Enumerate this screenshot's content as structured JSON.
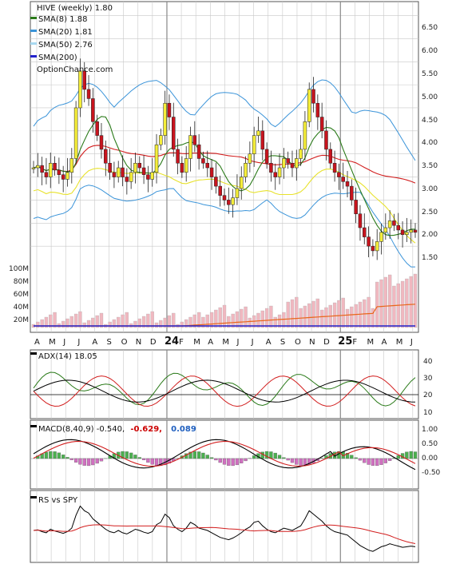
{
  "colors": {
    "background": "#ffffff",
    "grid": "#c8c8c8",
    "up_candle": "#f5ee3a",
    "down_candle": "#c8141e",
    "neutral_candle": "#b464b4",
    "sma8": "#2a7a19",
    "sma20": "#3b94d9",
    "sma50": "#e8e22c",
    "sma200": "#2222cc",
    "bollinger": "#3b94d9",
    "ma_red": "#d21e1e",
    "volume_bar": "#f0b8c0",
    "volume_line": "#e8661a",
    "adx": "#000000",
    "plus_di": "#2a7a19",
    "minus_di": "#d21e1e",
    "macd": "#000000",
    "signal": "#d21e1e",
    "hist_pos": "#4caf50",
    "hist_neg": "#d070c0",
    "rs": "#000000",
    "rs_ma": "#d21e1e",
    "macd_neg_value": "#cc0000",
    "macd_hist_value": "#1f5fbf"
  },
  "price_panel": {
    "legend": [
      {
        "label": "HIVE (weekly) 1.80",
        "swatch": ""
      },
      {
        "label": "SMA(8) 1.88",
        "swatch": "#2a7a19"
      },
      {
        "label": "SMA(20) 1.81",
        "swatch": "#3b94d9"
      },
      {
        "label": "SMA(50) 2.76",
        "swatch": "#a8d8f0"
      },
      {
        "label": "SMA(200)",
        "swatch": "#2222cc"
      }
    ],
    "watermark": "OptionChance.com",
    "y_ticks": [
      "6.50",
      "6.00",
      "5.50",
      "5.00",
      "4.50",
      "4.00",
      "3.50",
      "3.00",
      "2.50",
      "2.00",
      "1.50"
    ],
    "volume_ticks": [
      "100M",
      "80M",
      "60M",
      "40M",
      "20M"
    ]
  },
  "x_axis": {
    "labels": [
      "A",
      "M",
      "J",
      "J",
      "A",
      "S",
      "O",
      "N",
      "D",
      "24",
      "F",
      "M",
      "A",
      "M",
      "J",
      "J",
      "A",
      "S",
      "O",
      "N",
      "D",
      "25",
      "F",
      "M",
      "A",
      "M",
      "J"
    ]
  },
  "adx_panel": {
    "label": "ADX(14) 18.05",
    "y_ticks": [
      "40",
      "30",
      "20",
      "10"
    ]
  },
  "macd_panel": {
    "label": "MACD(8,40,9) -0.540,",
    "value_signal": "-0.629,",
    "value_hist": "0.089",
    "y_ticks": [
      "1.00",
      "0.50",
      "0.00",
      "-0.50"
    ]
  },
  "rs_panel": {
    "label": "RS vs SPY"
  },
  "chart_data": {
    "type": "candlestick",
    "title": "HIVE (weekly) 1.80",
    "price_range": [
      1.0,
      6.7
    ],
    "year_markers": [
      "24",
      "25"
    ],
    "close": [
      3.2,
      3.25,
      3.1,
      3.0,
      3.3,
      3.15,
      3.05,
      2.95,
      3.1,
      3.4,
      4.5,
      5.3,
      4.9,
      4.7,
      4.2,
      3.9,
      3.6,
      3.3,
      3.1,
      3.0,
      3.2,
      3.0,
      2.9,
      3.1,
      3.3,
      3.2,
      3.05,
      2.95,
      3.1,
      3.7,
      3.9,
      4.6,
      4.3,
      3.6,
      3.3,
      3.1,
      3.4,
      3.9,
      3.7,
      3.4,
      3.3,
      3.2,
      3.0,
      2.8,
      2.6,
      2.5,
      2.4,
      2.55,
      2.75,
      3.0,
      3.3,
      3.5,
      3.9,
      4.0,
      3.6,
      3.3,
      3.1,
      3.0,
      3.2,
      3.4,
      3.3,
      3.2,
      3.4,
      3.6,
      4.2,
      4.9,
      4.6,
      4.3,
      4.0,
      3.6,
      3.3,
      3.1,
      3.0,
      2.9,
      2.8,
      2.5,
      2.2,
      1.9,
      1.7,
      1.5,
      1.4,
      1.6,
      1.8,
      1.9,
      2.05,
      1.95,
      1.85,
      1.75,
      1.8,
      1.85,
      1.8
    ]
  }
}
